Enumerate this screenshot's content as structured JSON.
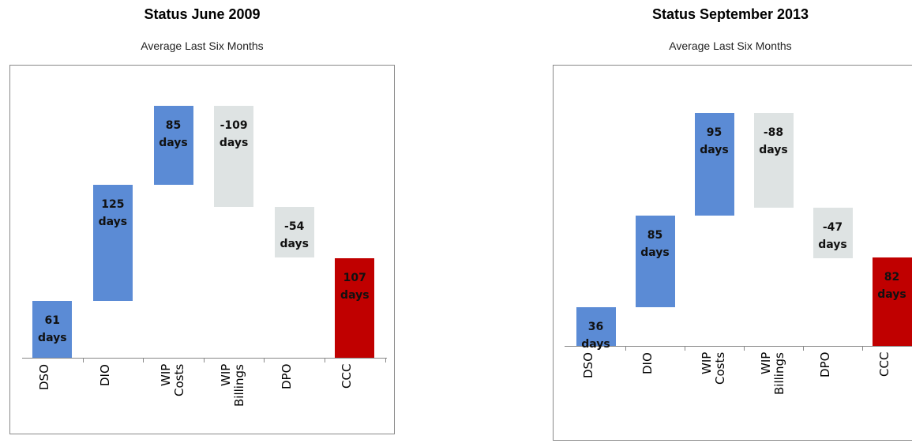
{
  "chart_data": [
    {
      "type": "waterfall",
      "title": "Status June 2009",
      "subtitle": "Average Last Six Months",
      "categories": [
        "DSO",
        "DIO",
        "WIP Costs",
        "WIP Billings",
        "DPO",
        "CCC"
      ],
      "values": [
        61,
        125,
        85,
        -109,
        -54,
        107
      ],
      "value_labels": [
        "61 days",
        "125 days",
        "85 days",
        "-109 days",
        "-54 days",
        "107 days"
      ],
      "total_index": 5,
      "colors": {
        "increase": "#5b8bd5",
        "decrease": "#dee3e3",
        "total": "#c00000"
      }
    },
    {
      "type": "waterfall",
      "title": "Status September 2013",
      "subtitle": "Average Last Six Months",
      "categories": [
        "DSO",
        "DIO",
        "WIP Costs",
        "WIP Billings",
        "DPO",
        "CCC"
      ],
      "values": [
        36,
        85,
        95,
        -88,
        -47,
        82
      ],
      "value_labels": [
        "36 days",
        "85 days",
        "95 days",
        "-88 days",
        "-47 days",
        "82 days"
      ],
      "total_index": 5,
      "colors": {
        "increase": "#5b8bd5",
        "decrease": "#dee3e3",
        "total": "#c00000"
      }
    }
  ]
}
